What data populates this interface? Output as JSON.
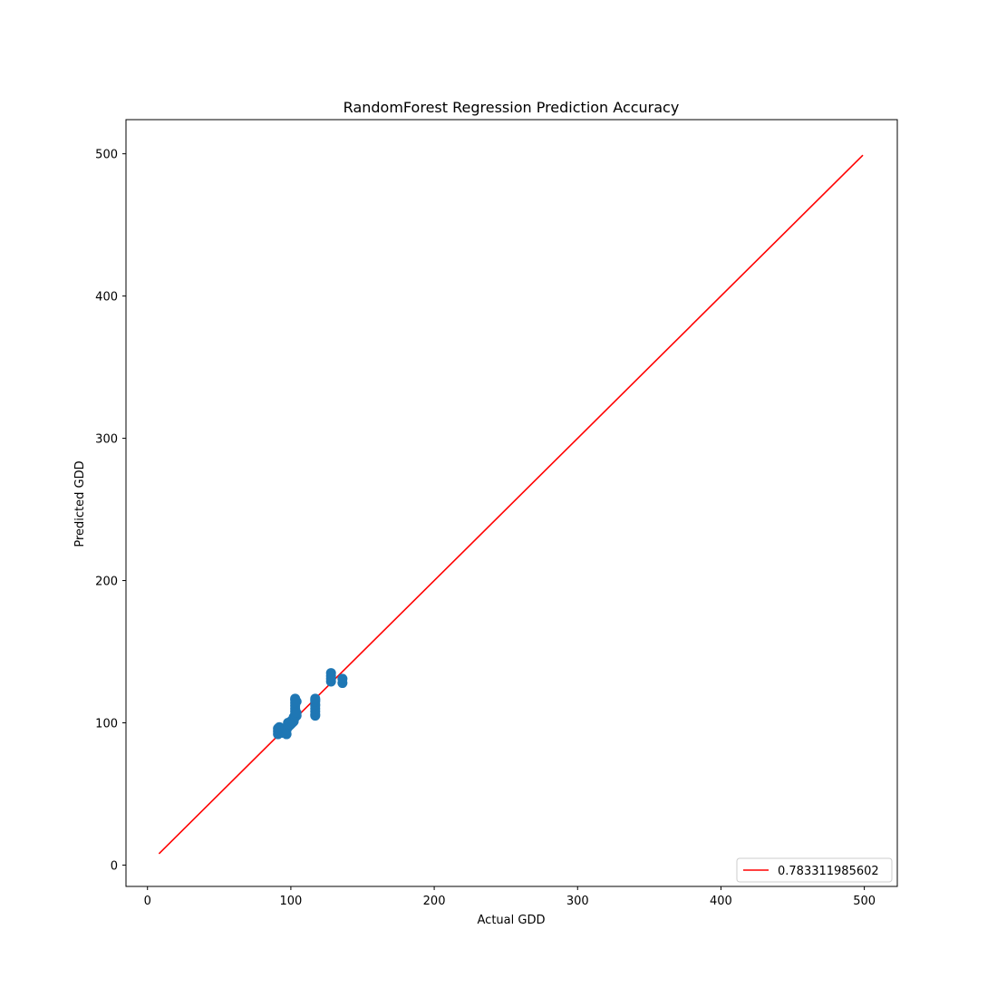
{
  "chart_data": {
    "type": "scatter",
    "title": "RandomForest Regression Prediction Accuracy",
    "xlabel": "Actual GDD",
    "ylabel": "Predicted GDD",
    "xlim": [
      -15,
      523
    ],
    "ylim": [
      -15,
      524
    ],
    "xticks": [
      0,
      100,
      200,
      300,
      400,
      500
    ],
    "yticks": [
      0,
      100,
      200,
      300,
      400,
      500
    ],
    "grid": false,
    "legend_position": "lower-right",
    "colors": {
      "points": "#1f77b4",
      "line": "#ff0000"
    },
    "series": [
      {
        "type": "line",
        "name": "0.783311985602",
        "x": [
          8,
          499
        ],
        "y": [
          8,
          499
        ]
      },
      {
        "type": "scatter",
        "x": [
          91,
          91,
          91,
          92,
          92,
          92,
          93,
          93,
          94,
          94,
          95,
          96,
          96,
          97,
          97,
          98,
          98,
          98,
          99,
          99,
          100,
          100,
          101,
          101,
          102,
          102,
          103,
          103,
          103,
          103,
          103,
          103,
          103,
          103,
          104,
          104,
          104,
          117,
          117,
          117,
          117,
          117,
          117,
          117,
          117,
          117,
          128,
          128,
          128,
          128,
          136,
          136
        ],
        "y": [
          92,
          94,
          96,
          93,
          95,
          97,
          94,
          96,
          93,
          95,
          94,
          93,
          96,
          92,
          95,
          97,
          99,
          100,
          98,
          100,
          99,
          101,
          100,
          102,
          101,
          104,
          104,
          106,
          108,
          110,
          112,
          114,
          116,
          117,
          105,
          107,
          115,
          105,
          106,
          108,
          110,
          112,
          113,
          115,
          116,
          117,
          129,
          131,
          133,
          135,
          128,
          131
        ]
      }
    ]
  }
}
